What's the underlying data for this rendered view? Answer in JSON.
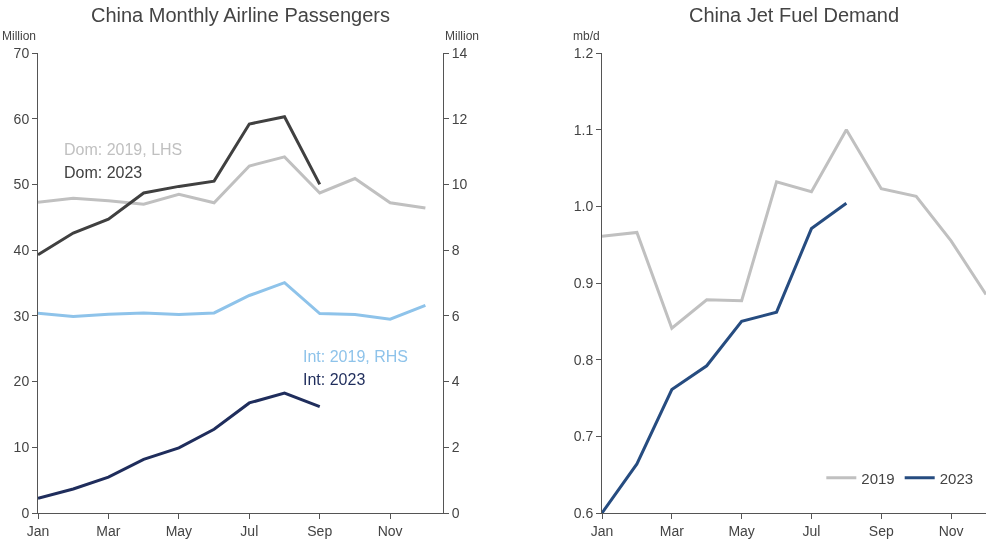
{
  "chart_data": [
    {
      "type": "line",
      "title": "China Monthly Airline Passengers",
      "ylabel": "Million",
      "y2label": "Million",
      "categories": [
        "Jan",
        null,
        "Mar",
        null,
        "May",
        null,
        "Jul",
        null,
        "Sep",
        null,
        "Nov",
        null
      ],
      "series": [
        {
          "name": "Dom: 2019, LHS",
          "color": "#c0c0c0",
          "values": [
            47.3,
            47.9,
            47.5,
            47.0,
            48.5,
            47.2,
            52.8,
            54.2,
            48.7,
            50.9,
            47.2,
            46.4
          ]
        },
        {
          "name": "Dom: 2023",
          "color": "#404040",
          "values": [
            39.3,
            42.6,
            44.7,
            48.7,
            49.7,
            50.5,
            59.2,
            60.3,
            50.0,
            null,
            null,
            null
          ]
        },
        {
          "name": "Int: 2019, RHS",
          "color": "#8ec3ea",
          "axis": "y2",
          "values": [
            6.08,
            5.98,
            6.05,
            6.09,
            6.04,
            6.09,
            6.62,
            7.01,
            6.07,
            6.04,
            5.9,
            6.32
          ]
        },
        {
          "name": "Int: 2023",
          "color": "#1f2d5c",
          "axis": "y2",
          "values": [
            0.45,
            0.73,
            1.09,
            1.63,
            1.98,
            2.55,
            3.35,
            3.65,
            3.24,
            null,
            null,
            null
          ]
        }
      ],
      "ylim": [
        0,
        70
      ],
      "yticks": [
        0,
        10,
        20,
        30,
        40,
        50,
        60,
        70
      ],
      "y2lim": [
        0,
        14
      ],
      "y2ticks": [
        0,
        2,
        4,
        6,
        8,
        10,
        12,
        14
      ],
      "grid": false,
      "legend": false,
      "marker": "none",
      "line_style": "solid"
    },
    {
      "type": "line",
      "title": "China Jet Fuel Demand",
      "ylabel": "mb/d",
      "categories": [
        "Jan",
        null,
        "Mar",
        null,
        "May",
        null,
        "Jul",
        null,
        "Sep",
        null,
        "Nov",
        null
      ],
      "series": [
        {
          "name": "2019",
          "color": "#c0c0c0",
          "values": [
            0.961,
            0.966,
            0.841,
            0.878,
            0.877,
            1.032,
            1.019,
            1.1,
            1.023,
            1.013,
            0.955,
            0.885
          ]
        },
        {
          "name": "2023",
          "color": "#264c80",
          "values": [
            0.6,
            0.664,
            0.761,
            0.792,
            0.85,
            0.862,
            0.971,
            1.004,
            null,
            null,
            null,
            null
          ]
        }
      ],
      "ylim": [
        0.6,
        1.2
      ],
      "yticks": [
        {
          "value": 0.6,
          "label": "0.6"
        },
        {
          "value": 0.7,
          "label": "0.7"
        },
        {
          "value": 0.8,
          "label": "0.8"
        },
        {
          "value": 0.9,
          "label": "0.9"
        },
        {
          "value": 1.0,
          "label": "1.0"
        },
        {
          "value": 1.1,
          "label": "1.1"
        },
        {
          "value": 1.2,
          "label": "1.2"
        }
      ],
      "grid": false,
      "legend": "bottom right",
      "marker": "none",
      "line_style": "solid"
    }
  ]
}
